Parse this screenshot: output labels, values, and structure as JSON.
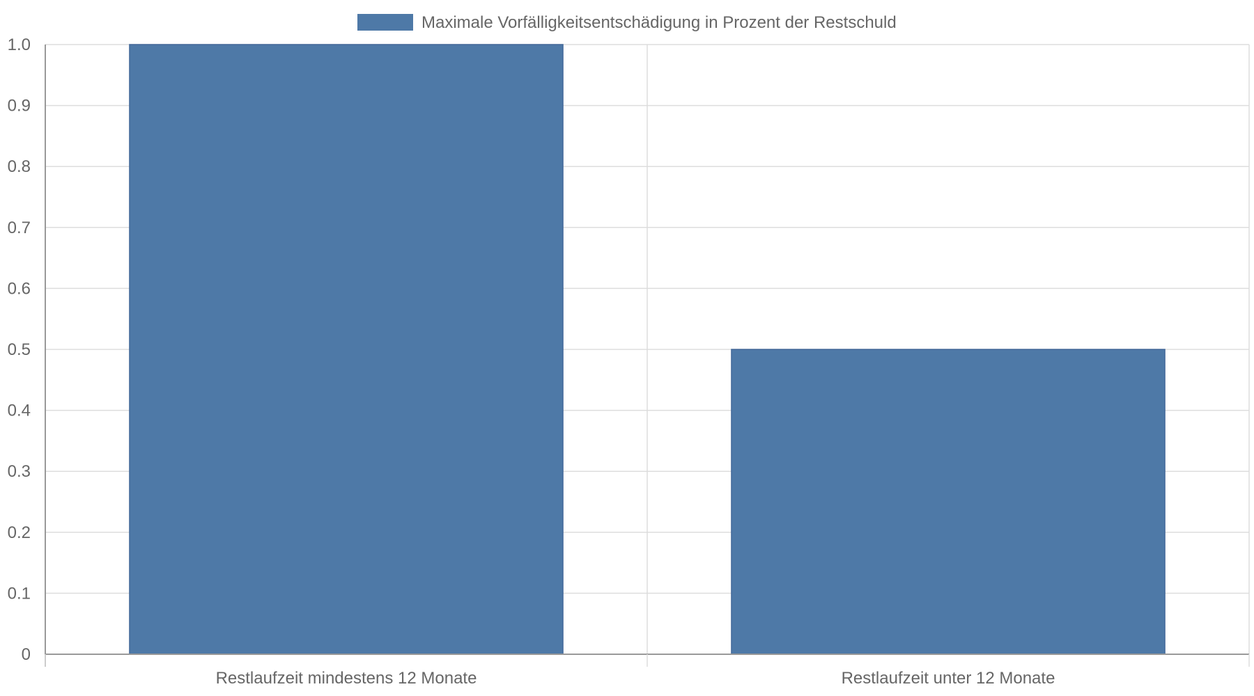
{
  "chart_data": {
    "type": "bar",
    "categories": [
      "Restlaufzeit mindestens 12 Monate",
      "Restlaufzeit unter 12 Monate"
    ],
    "series": [
      {
        "name": "Maximale Vorfälligkeitsentschädigung in Prozent der Restschuld",
        "values": [
          1.0,
          0.5
        ],
        "color": "#4e79a7"
      }
    ],
    "yticks": [
      "0",
      "0.1",
      "0.2",
      "0.3",
      "0.4",
      "0.5",
      "0.6",
      "0.7",
      "0.8",
      "0.9",
      "1.0"
    ],
    "ylim": [
      0,
      1.0
    ],
    "grid": true,
    "legend_position": "top",
    "colors": {
      "bar": "#4e79a7",
      "grid": "#dddddd",
      "axis": "#999999",
      "text": "#666666"
    }
  }
}
